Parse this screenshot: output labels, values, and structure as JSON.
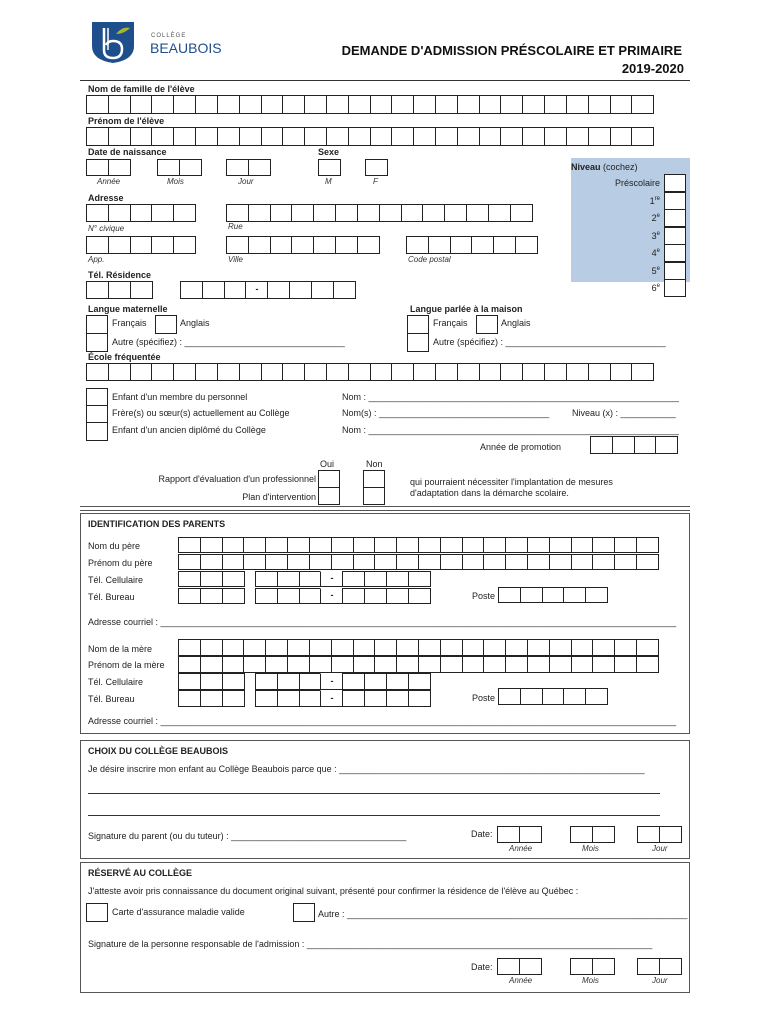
{
  "logo": {
    "small": "COLLÈGE",
    "big": "BEAUBOIS",
    "colors": {
      "shield": "#1f4e8c",
      "leaf": "#a7b52f"
    }
  },
  "header": {
    "title": "DEMANDE D'ADMISSION  PRÉSCOLAIRE ET PRIMAIRE",
    "year": "2019-2020"
  },
  "student": {
    "last_name": "Nom de famille de l'élève",
    "first_name": "Prénom de l'élève",
    "birth_date": "Date de naissance",
    "sex": "Sexe",
    "year": "Année",
    "month": "Mois",
    "day": "Jour",
    "m": "M",
    "f": "F",
    "address": "Adresse",
    "civic": "N° civique",
    "street": "Rue",
    "apt": "App.",
    "city": "Ville",
    "postal": "Code postal",
    "phone": "Tél. Résidence",
    "dash": "-",
    "mother_tongue": "Langue maternelle",
    "home_language": "Langue parlée à la maison",
    "french": "Français",
    "english": "Anglais",
    "other": "Autre (spécifiez) : ________________________________",
    "school": "École fréquentée"
  },
  "niveau": {
    "title": "Niveau",
    "hint": "(cochez)",
    "levels": [
      "Préscolaire",
      "1",
      "2",
      "3",
      "4",
      "5",
      "6"
    ],
    "sups": [
      "re",
      "e",
      "e",
      "e",
      "e",
      "e"
    ],
    "color": "#b8cce4"
  },
  "relations": {
    "staff": "Enfant d'un membre du personnel",
    "sibling": "Frère(s) ou sœur(s) actuellement au Collège",
    "alumni": "Enfant d'un ancien diplômé du Collège",
    "nom1": "Nom : ______________________________________________________________",
    "noms": "Nom(s) : __________________________________",
    "niveau_x": "Niveau (x) : ___________",
    "nom3": "Nom : ______________________________________________________________",
    "promotion": "Année de promotion"
  },
  "needs": {
    "oui": "Oui",
    "non": "Non",
    "report": "Rapport d'évaluation d'un professionnel",
    "plan": "Plan d'intervention",
    "note1": "qui pourraient nécessiter l'implantation de mesures",
    "note2": "d'adaptation dans la démarche scolaire."
  },
  "parents": {
    "title": "IDENTIFICATION DES PARENTS",
    "father_name": "Nom du père",
    "father_first": "Prénom du père",
    "cell": "Tél. Cellulaire",
    "work": "Tél. Bureau",
    "ext": "Poste",
    "email": "Adresse courriel : _______________________________________________________________________________________________________",
    "mother_name": "Nom de la mère",
    "mother_first": "Prénom de la mère"
  },
  "choice": {
    "title": "CHOIX DU COLLÈGE BEAUBOIS",
    "reason": "Je désire inscrire mon enfant au Collège Beaubois parce que : _____________________________________________________________",
    "signature": "Signature du parent (ou du tuteur) : ___________________________________",
    "date": "Date:",
    "year": "Année",
    "month": "Mois",
    "day": "Jour"
  },
  "reserved": {
    "title": "RÉSERVÉ AU COLLÈGE",
    "attest": "J'atteste avoir pris connaissance du document original suivant, présenté pour confirmer la résidence de l'élève au Québec :",
    "card": "Carte d'assurance maladie valide",
    "other": "Autre : ____________________________________________________________________",
    "signature": "Signature de la personne responsable de l'admission : _____________________________________________________________________",
    "date": "Date:",
    "year": "Année",
    "month": "Mois",
    "day": "Jour"
  }
}
